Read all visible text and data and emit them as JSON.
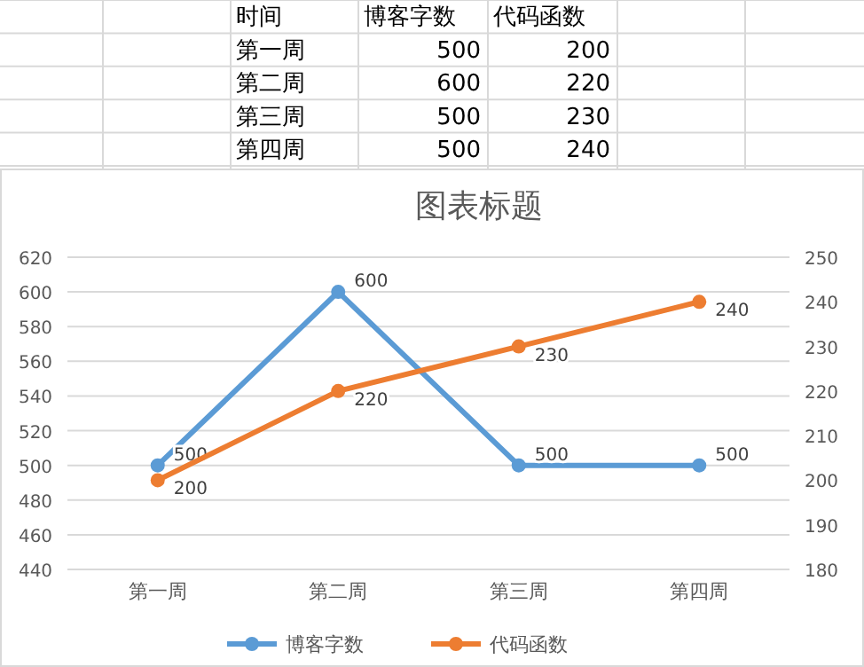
{
  "chart_data": {
    "type": "line",
    "title": "图表标题",
    "annotations": [
      "时间",
      "500",
      "600",
      "500",
      "500",
      "200",
      "220",
      "230",
      "240"
    ],
    "categories": [
      "第一周",
      "第二周",
      "第三周",
      "第四周"
    ],
    "series": [
      {
        "name": "博客字数",
        "color": "#5b9bd5",
        "values": [
          500,
          600,
          500,
          500
        ]
      },
      {
        "name": "代码函数",
        "color": "#ed7d31",
        "values": [
          200,
          220,
          230,
          240
        ],
        "axis": "y2"
      }
    ],
    "ylim": [
      440,
      620
    ],
    "yticks": [
      440,
      460,
      480,
      500,
      520,
      540,
      560,
      580,
      600,
      620
    ],
    "y2lim": [
      180,
      250
    ],
    "y2ticks": [
      180,
      190,
      200,
      210,
      220,
      230,
      240,
      250
    ],
    "grid": "y",
    "legend": "bottom",
    "marker": "circle",
    "line_style": "solid",
    "data_labels": true
  }
}
